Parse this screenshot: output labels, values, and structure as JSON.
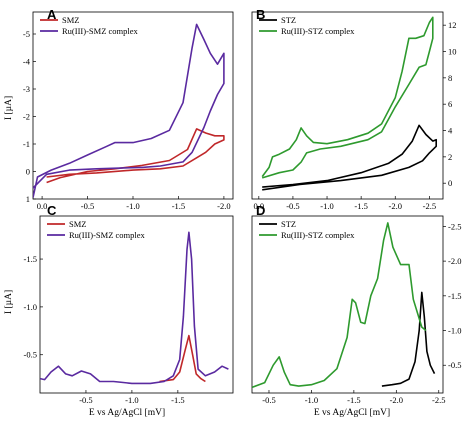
{
  "figure": {
    "common_xlabel": "E vs Ag/AgCl [mV]",
    "common_ylabel": "I [µA]"
  },
  "chart_data": [
    {
      "id": "A",
      "type": "line",
      "panel_label": "A",
      "x_reversed": true,
      "y_reversed": true,
      "xlim": [
        0.1,
        -2.1
      ],
      "ylim": [
        1.0,
        -5.8
      ],
      "xticks": [
        0.0,
        -0.5,
        -1.0,
        -1.5,
        -2.0
      ],
      "xtick_labels": [
        "0.0",
        "-0.5",
        "-1.0",
        "-1.5",
        "-2.0"
      ],
      "yticks": [
        1,
        0,
        -1,
        -2,
        -3,
        -4,
        -5
      ],
      "ytick_labels": [
        "1",
        "0",
        "-1",
        "-2",
        "-3",
        "-4",
        "-5"
      ],
      "y_axis_side": "left",
      "ylabel": "I [µA]",
      "legend_position": "top-left",
      "series": [
        {
          "name": "SMZ",
          "color": "#c0282a",
          "points": [
            [
              -0.05,
              0.4
            ],
            [
              -0.2,
              0.22
            ],
            [
              -0.5,
              0.0
            ],
            [
              -0.8,
              -0.1
            ],
            [
              -1.1,
              -0.22
            ],
            [
              -1.4,
              -0.4
            ],
            [
              -1.6,
              -0.8
            ],
            [
              -1.7,
              -1.55
            ],
            [
              -1.8,
              -1.4
            ],
            [
              -1.9,
              -1.3
            ],
            [
              -2.0,
              -1.3
            ],
            [
              -2.0,
              -1.15
            ],
            [
              -1.9,
              -1.0
            ],
            [
              -1.8,
              -0.7
            ],
            [
              -1.7,
              -0.5
            ],
            [
              -1.55,
              -0.2
            ],
            [
              -1.3,
              -0.1
            ],
            [
              -1.0,
              -0.05
            ],
            [
              -0.6,
              0.05
            ],
            [
              -0.3,
              0.1
            ],
            [
              -0.05,
              0.2
            ]
          ]
        },
        {
          "name": "Ru(III)-SMZ complex",
          "color": "#5a2aa0",
          "points": [
            [
              0.1,
              0.95
            ],
            [
              0.05,
              0.2
            ],
            [
              -0.1,
              -0.05
            ],
            [
              -0.3,
              -0.3
            ],
            [
              -0.5,
              -0.6
            ],
            [
              -0.7,
              -0.9
            ],
            [
              -0.8,
              -1.05
            ],
            [
              -1.0,
              -1.05
            ],
            [
              -1.2,
              -1.2
            ],
            [
              -1.4,
              -1.5
            ],
            [
              -1.55,
              -2.5
            ],
            [
              -1.65,
              -4.5
            ],
            [
              -1.7,
              -5.35
            ],
            [
              -1.78,
              -4.8
            ],
            [
              -1.85,
              -4.3
            ],
            [
              -1.93,
              -3.9
            ],
            [
              -2.0,
              -4.3
            ],
            [
              -2.0,
              -3.2
            ],
            [
              -1.93,
              -2.8
            ],
            [
              -1.85,
              -2.2
            ],
            [
              -1.78,
              -1.6
            ],
            [
              -1.65,
              -0.7
            ],
            [
              -1.55,
              -0.35
            ],
            [
              -1.3,
              -0.2
            ],
            [
              -1.1,
              -0.15
            ],
            [
              -0.6,
              -0.1
            ],
            [
              -0.3,
              -0.05
            ],
            [
              -0.05,
              0.1
            ],
            [
              0.1,
              0.6
            ]
          ]
        }
      ]
    },
    {
      "id": "B",
      "type": "line",
      "panel_label": "B",
      "x_reversed": true,
      "y_reversed": false,
      "xlim": [
        0.1,
        -2.7
      ],
      "ylim": [
        -1.2,
        13.0
      ],
      "xticks": [
        0.0,
        -0.5,
        -1.0,
        -1.5,
        -2.0,
        -2.5
      ],
      "xtick_labels": [
        "0.0",
        "-0.5",
        "-1.0",
        "-1.5",
        "-2.0",
        "-2.5"
      ],
      "yticks": [
        0,
        2,
        4,
        6,
        8,
        10,
        12
      ],
      "ytick_labels": [
        "0",
        "2",
        "4",
        "6",
        "8",
        "10",
        "12"
      ],
      "y_axis_side": "right",
      "ylabel": "",
      "legend_position": "top-left",
      "series": [
        {
          "name": "STZ",
          "color": "#000000",
          "points": [
            [
              -0.05,
              -0.3
            ],
            [
              -0.5,
              -0.1
            ],
            [
              -1.0,
              0.2
            ],
            [
              -1.5,
              0.8
            ],
            [
              -1.9,
              1.5
            ],
            [
              -2.1,
              2.2
            ],
            [
              -2.25,
              3.2
            ],
            [
              -2.35,
              4.4
            ],
            [
              -2.45,
              3.7
            ],
            [
              -2.55,
              3.2
            ],
            [
              -2.6,
              3.3
            ],
            [
              -2.6,
              2.8
            ],
            [
              -2.5,
              2.3
            ],
            [
              -2.4,
              1.7
            ],
            [
              -2.2,
              1.2
            ],
            [
              -1.8,
              0.6
            ],
            [
              -1.2,
              0.2
            ],
            [
              -0.6,
              -0.1
            ],
            [
              -0.05,
              -0.5
            ]
          ]
        },
        {
          "name": "Ru(III)-STZ complex",
          "color": "#2e9a2e",
          "points": [
            [
              -0.05,
              0.5
            ],
            [
              -0.15,
              1.2
            ],
            [
              -0.2,
              2.0
            ],
            [
              -0.3,
              2.2
            ],
            [
              -0.45,
              2.6
            ],
            [
              -0.55,
              3.3
            ],
            [
              -0.62,
              4.2
            ],
            [
              -0.7,
              3.6
            ],
            [
              -0.8,
              3.1
            ],
            [
              -1.0,
              3.0
            ],
            [
              -1.3,
              3.3
            ],
            [
              -1.6,
              3.8
            ],
            [
              -1.8,
              4.5
            ],
            [
              -2.0,
              6.5
            ],
            [
              -2.1,
              8.5
            ],
            [
              -2.2,
              11.0
            ],
            [
              -2.3,
              11.0
            ],
            [
              -2.42,
              11.2
            ],
            [
              -2.5,
              12.2
            ],
            [
              -2.55,
              12.6
            ],
            [
              -2.55,
              11.0
            ],
            [
              -2.5,
              10.0
            ],
            [
              -2.45,
              9.0
            ],
            [
              -2.35,
              8.8
            ],
            [
              -2.2,
              7.5
            ],
            [
              -2.0,
              5.8
            ],
            [
              -1.8,
              3.9
            ],
            [
              -1.6,
              3.3
            ],
            [
              -1.2,
              2.8
            ],
            [
              -0.9,
              2.6
            ],
            [
              -0.7,
              2.3
            ],
            [
              -0.62,
              1.6
            ],
            [
              -0.5,
              1.0
            ],
            [
              -0.3,
              0.8
            ],
            [
              -0.05,
              0.4
            ]
          ]
        }
      ]
    },
    {
      "id": "C",
      "type": "line",
      "panel_label": "C",
      "x_reversed": true,
      "y_reversed": true,
      "xlim": [
        0.0,
        -2.1
      ],
      "ylim": [
        -0.1,
        -1.95
      ],
      "xticks": [
        -0.5,
        -1.0,
        -1.5
      ],
      "xtick_labels": [
        "-0.5",
        "-1.0",
        "-1.5"
      ],
      "yticks": [
        -0.5,
        -1.0,
        -1.5
      ],
      "ytick_labels": [
        "-0.5",
        "-1.0",
        "-1.5"
      ],
      "y_axis_side": "left",
      "ylabel": "I [µA]",
      "xlabel": "E vs Ag/AgCl [mV]",
      "legend_position": "top-left",
      "series": [
        {
          "name": "SMZ",
          "color": "#c0282a",
          "points": [
            [
              -1.3,
              -0.22
            ],
            [
              -1.45,
              -0.24
            ],
            [
              -1.52,
              -0.32
            ],
            [
              -1.58,
              -0.55
            ],
            [
              -1.62,
              -0.7
            ],
            [
              -1.66,
              -0.5
            ],
            [
              -1.7,
              -0.3
            ],
            [
              -1.75,
              -0.25
            ],
            [
              -1.8,
              -0.22
            ]
          ]
        },
        {
          "name": "Ru(III)-SMZ complex",
          "color": "#5a2aa0",
          "points": [
            [
              0.0,
              -0.25
            ],
            [
              -0.05,
              -0.24
            ],
            [
              -0.12,
              -0.32
            ],
            [
              -0.2,
              -0.38
            ],
            [
              -0.28,
              -0.3
            ],
            [
              -0.35,
              -0.28
            ],
            [
              -0.45,
              -0.33
            ],
            [
              -0.55,
              -0.3
            ],
            [
              -0.65,
              -0.22
            ],
            [
              -0.8,
              -0.22
            ],
            [
              -1.0,
              -0.2
            ],
            [
              -1.2,
              -0.2
            ],
            [
              -1.35,
              -0.22
            ],
            [
              -1.45,
              -0.28
            ],
            [
              -1.52,
              -0.45
            ],
            [
              -1.56,
              -0.9
            ],
            [
              -1.6,
              -1.6
            ],
            [
              -1.62,
              -1.78
            ],
            [
              -1.65,
              -1.5
            ],
            [
              -1.68,
              -0.8
            ],
            [
              -1.72,
              -0.35
            ],
            [
              -1.8,
              -0.28
            ],
            [
              -1.9,
              -0.32
            ],
            [
              -1.98,
              -0.38
            ],
            [
              -2.05,
              -0.35
            ]
          ]
        }
      ]
    },
    {
      "id": "D",
      "type": "line",
      "panel_label": "D",
      "x_reversed": true,
      "y_reversed": true,
      "xlim": [
        -0.3,
        -2.55
      ],
      "ylim": [
        -0.1,
        -2.65
      ],
      "xticks": [
        -0.5,
        -1.0,
        -1.5,
        -2.0,
        -2.5
      ],
      "xtick_labels": [
        "-0.5",
        "-1.0",
        "-1.5",
        "-2.0",
        "-2.5"
      ],
      "yticks": [
        -0.5,
        -1.0,
        -1.5,
        -2.0,
        -2.5
      ],
      "ytick_labels": [
        "-0.5",
        "-1.0",
        "-1.5",
        "-2.0",
        "-2.5"
      ],
      "y_axis_side": "right",
      "ylabel": "",
      "xlabel": "E vs Ag/AgCl [mV]",
      "legend_position": "top-left",
      "series": [
        {
          "name": "STZ",
          "color": "#000000",
          "points": [
            [
              -1.83,
              -0.2
            ],
            [
              -1.95,
              -0.22
            ],
            [
              -2.05,
              -0.24
            ],
            [
              -2.15,
              -0.3
            ],
            [
              -2.22,
              -0.55
            ],
            [
              -2.27,
              -1.0
            ],
            [
              -2.3,
              -1.55
            ],
            [
              -2.33,
              -1.2
            ],
            [
              -2.36,
              -0.7
            ],
            [
              -2.4,
              -0.5
            ],
            [
              -2.45,
              -0.38
            ]
          ]
        },
        {
          "name": "Ru(III)-STZ complex",
          "color": "#2e9a2e",
          "points": [
            [
              -0.3,
              -0.18
            ],
            [
              -0.45,
              -0.25
            ],
            [
              -0.55,
              -0.5
            ],
            [
              -0.62,
              -0.62
            ],
            [
              -0.68,
              -0.4
            ],
            [
              -0.75,
              -0.22
            ],
            [
              -0.85,
              -0.2
            ],
            [
              -1.0,
              -0.22
            ],
            [
              -1.15,
              -0.28
            ],
            [
              -1.3,
              -0.45
            ],
            [
              -1.42,
              -0.9
            ],
            [
              -1.48,
              -1.45
            ],
            [
              -1.52,
              -1.4
            ],
            [
              -1.58,
              -1.12
            ],
            [
              -1.63,
              -1.1
            ],
            [
              -1.7,
              -1.5
            ],
            [
              -1.78,
              -1.75
            ],
            [
              -1.85,
              -2.3
            ],
            [
              -1.9,
              -2.55
            ],
            [
              -1.96,
              -2.2
            ],
            [
              -2.05,
              -1.95
            ],
            [
              -2.15,
              -1.95
            ],
            [
              -2.2,
              -1.45
            ],
            [
              -2.3,
              -1.05
            ],
            [
              -2.35,
              -1.0
            ]
          ]
        }
      ]
    }
  ]
}
